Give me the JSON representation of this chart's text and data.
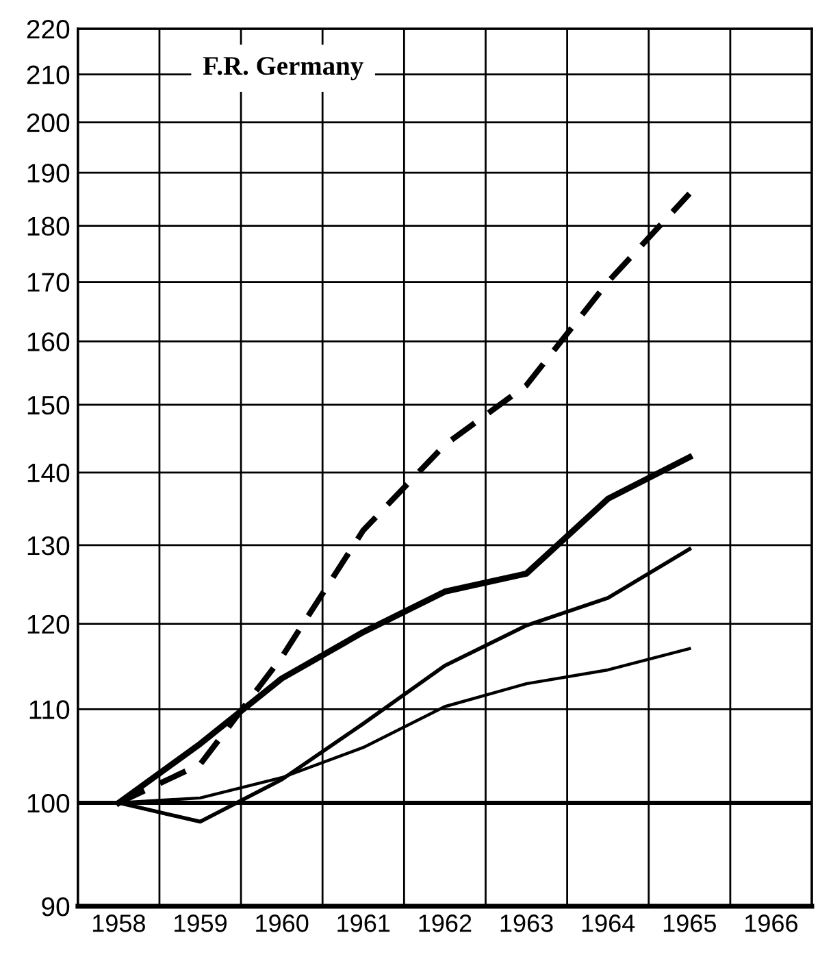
{
  "chart_data": {
    "type": "line",
    "title": "F.R. Germany",
    "x": [
      1958,
      1959,
      1960,
      1961,
      1962,
      1963,
      1964,
      1965
    ],
    "series": [
      {
        "color": "#000000",
        "line_style": "dashed",
        "values": [
          100,
          104,
          116,
          132,
          144,
          153,
          170,
          186
        ]
      },
      {
        "color": "#000000",
        "line_style": "solid",
        "values": [
          100,
          106.2,
          113.5,
          119,
          124,
          126.3,
          136.3,
          142.2
        ]
      },
      {
        "color": "#000000",
        "line_style": "solid",
        "values": [
          100,
          98.1,
          102.4,
          108.4,
          115,
          119.8,
          123.2,
          129.5
        ]
      },
      {
        "color": "#000000",
        "line_style": "solid",
        "values": [
          100,
          100.5,
          102.6,
          105.8,
          110.3,
          112.9,
          114.5,
          117
        ]
      }
    ],
    "log": "y",
    "xlim": [
      1957.5,
      1966.5
    ],
    "xticks": [
      1958,
      1959,
      1960,
      1961,
      1962,
      1963,
      1964,
      1965,
      1966
    ],
    "ylim": [
      90,
      220
    ],
    "yticks": [
      90,
      100,
      110,
      120,
      130,
      140,
      150,
      160,
      170,
      180,
      190,
      200,
      210,
      220
    ],
    "ref_lines": [
      {
        "axis": "y",
        "value": 100,
        "color": "#000000"
      }
    ],
    "grid": true,
    "marker": "none"
  }
}
